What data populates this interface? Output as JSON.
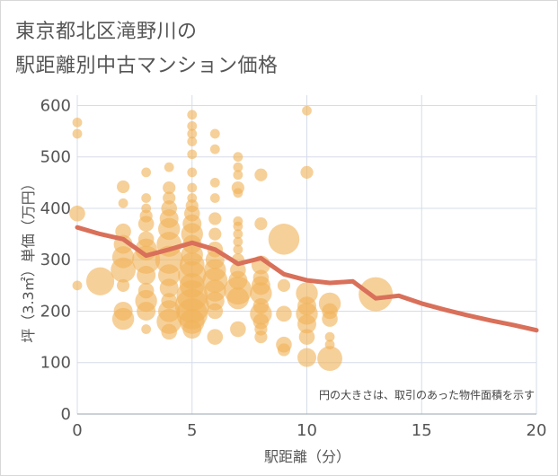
{
  "header": {
    "title_line1": "東京都北区滝野川の",
    "title_line2": "駅距離別中古マンション価格"
  },
  "chart_data": {
    "type": "scatter",
    "xlabel": "駅距離（分）",
    "ylabel": "坪（3.3㎡）単価（万円）",
    "xlim": [
      0,
      20
    ],
    "ylim": [
      0,
      620
    ],
    "xticks": [
      0,
      5,
      10,
      15,
      20
    ],
    "yticks": [
      0,
      100,
      200,
      300,
      400,
      500,
      600
    ],
    "grid": true,
    "note": "円の大きさは、取引のあった物件面積を示す",
    "colors": {
      "bubble": "#f0b35a",
      "line": "#d9705a",
      "grid": "#d6dce8",
      "text": "#555555"
    },
    "trend_line": {
      "x": [
        0,
        1,
        2,
        3,
        4,
        5,
        6,
        7,
        8,
        9,
        10,
        11,
        12,
        13,
        14,
        15,
        16,
        17,
        18,
        19,
        20
      ],
      "y": [
        363,
        350,
        340,
        308,
        320,
        333,
        320,
        292,
        303,
        272,
        260,
        255,
        258,
        225,
        230,
        215,
        203,
        192,
        182,
        173,
        163
      ]
    },
    "bubbles": [
      {
        "x": 0,
        "y": 567,
        "s": 2
      },
      {
        "x": 0,
        "y": 545,
        "s": 2
      },
      {
        "x": 0,
        "y": 390,
        "s": 4
      },
      {
        "x": 0,
        "y": 250,
        "s": 2
      },
      {
        "x": 1,
        "y": 258,
        "s": 8
      },
      {
        "x": 2,
        "y": 442,
        "s": 3
      },
      {
        "x": 2,
        "y": 410,
        "s": 2
      },
      {
        "x": 2,
        "y": 355,
        "s": 4
      },
      {
        "x": 2,
        "y": 330,
        "s": 5
      },
      {
        "x": 2,
        "y": 305,
        "s": 6
      },
      {
        "x": 2,
        "y": 280,
        "s": 7
      },
      {
        "x": 2,
        "y": 250,
        "s": 3
      },
      {
        "x": 2,
        "y": 200,
        "s": 5
      },
      {
        "x": 2,
        "y": 185,
        "s": 6
      },
      {
        "x": 3,
        "y": 470,
        "s": 2
      },
      {
        "x": 3,
        "y": 420,
        "s": 2
      },
      {
        "x": 3,
        "y": 400,
        "s": 2
      },
      {
        "x": 3,
        "y": 385,
        "s": 3
      },
      {
        "x": 3,
        "y": 370,
        "s": 4
      },
      {
        "x": 3,
        "y": 340,
        "s": 4
      },
      {
        "x": 3,
        "y": 320,
        "s": 6
      },
      {
        "x": 3,
        "y": 300,
        "s": 8
      },
      {
        "x": 3,
        "y": 270,
        "s": 5
      },
      {
        "x": 3,
        "y": 240,
        "s": 4
      },
      {
        "x": 3,
        "y": 220,
        "s": 6
      },
      {
        "x": 3,
        "y": 200,
        "s": 5
      },
      {
        "x": 3,
        "y": 165,
        "s": 2
      },
      {
        "x": 4,
        "y": 480,
        "s": 2
      },
      {
        "x": 4,
        "y": 440,
        "s": 3
      },
      {
        "x": 4,
        "y": 420,
        "s": 3
      },
      {
        "x": 4,
        "y": 400,
        "s": 4
      },
      {
        "x": 4,
        "y": 380,
        "s": 5
      },
      {
        "x": 4,
        "y": 360,
        "s": 6
      },
      {
        "x": 4,
        "y": 330,
        "s": 7
      },
      {
        "x": 4,
        "y": 300,
        "s": 8
      },
      {
        "x": 4,
        "y": 270,
        "s": 6
      },
      {
        "x": 4,
        "y": 245,
        "s": 5
      },
      {
        "x": 4,
        "y": 220,
        "s": 4
      },
      {
        "x": 4,
        "y": 200,
        "s": 6
      },
      {
        "x": 4,
        "y": 180,
        "s": 7
      },
      {
        "x": 4,
        "y": 160,
        "s": 4
      },
      {
        "x": 5,
        "y": 582,
        "s": 2
      },
      {
        "x": 5,
        "y": 560,
        "s": 2
      },
      {
        "x": 5,
        "y": 545,
        "s": 2
      },
      {
        "x": 5,
        "y": 530,
        "s": 2
      },
      {
        "x": 5,
        "y": 505,
        "s": 2
      },
      {
        "x": 5,
        "y": 470,
        "s": 2
      },
      {
        "x": 5,
        "y": 440,
        "s": 2
      },
      {
        "x": 5,
        "y": 420,
        "s": 2
      },
      {
        "x": 5,
        "y": 405,
        "s": 3
      },
      {
        "x": 5,
        "y": 390,
        "s": 4
      },
      {
        "x": 5,
        "y": 370,
        "s": 5
      },
      {
        "x": 5,
        "y": 350,
        "s": 6
      },
      {
        "x": 5,
        "y": 330,
        "s": 5
      },
      {
        "x": 5,
        "y": 310,
        "s": 6
      },
      {
        "x": 5,
        "y": 290,
        "s": 7
      },
      {
        "x": 5,
        "y": 270,
        "s": 8
      },
      {
        "x": 5,
        "y": 250,
        "s": 7
      },
      {
        "x": 5,
        "y": 230,
        "s": 9
      },
      {
        "x": 5,
        "y": 210,
        "s": 10
      },
      {
        "x": 5,
        "y": 195,
        "s": 9
      },
      {
        "x": 5,
        "y": 180,
        "s": 7
      },
      {
        "x": 5,
        "y": 165,
        "s": 5
      },
      {
        "x": 6,
        "y": 545,
        "s": 2
      },
      {
        "x": 6,
        "y": 515,
        "s": 2
      },
      {
        "x": 6,
        "y": 450,
        "s": 2
      },
      {
        "x": 6,
        "y": 420,
        "s": 2
      },
      {
        "x": 6,
        "y": 380,
        "s": 3
      },
      {
        "x": 6,
        "y": 350,
        "s": 3
      },
      {
        "x": 6,
        "y": 320,
        "s": 4
      },
      {
        "x": 6,
        "y": 300,
        "s": 5
      },
      {
        "x": 6,
        "y": 280,
        "s": 6
      },
      {
        "x": 6,
        "y": 260,
        "s": 7
      },
      {
        "x": 6,
        "y": 240,
        "s": 6
      },
      {
        "x": 6,
        "y": 220,
        "s": 5
      },
      {
        "x": 6,
        "y": 200,
        "s": 4
      },
      {
        "x": 6,
        "y": 150,
        "s": 4
      },
      {
        "x": 7,
        "y": 500,
        "s": 2
      },
      {
        "x": 7,
        "y": 480,
        "s": 2
      },
      {
        "x": 7,
        "y": 465,
        "s": 2
      },
      {
        "x": 7,
        "y": 440,
        "s": 3
      },
      {
        "x": 7,
        "y": 430,
        "s": 2
      },
      {
        "x": 7,
        "y": 375,
        "s": 2
      },
      {
        "x": 7,
        "y": 365,
        "s": 2
      },
      {
        "x": 7,
        "y": 350,
        "s": 2
      },
      {
        "x": 7,
        "y": 335,
        "s": 2
      },
      {
        "x": 7,
        "y": 320,
        "s": 2
      },
      {
        "x": 7,
        "y": 300,
        "s": 3
      },
      {
        "x": 7,
        "y": 280,
        "s": 4
      },
      {
        "x": 7,
        "y": 260,
        "s": 5
      },
      {
        "x": 7,
        "y": 240,
        "s": 8
      },
      {
        "x": 7,
        "y": 225,
        "s": 6
      },
      {
        "x": 7,
        "y": 165,
        "s": 4
      },
      {
        "x": 8,
        "y": 465,
        "s": 3
      },
      {
        "x": 8,
        "y": 370,
        "s": 3
      },
      {
        "x": 8,
        "y": 290,
        "s": 5
      },
      {
        "x": 8,
        "y": 265,
        "s": 4
      },
      {
        "x": 8,
        "y": 250,
        "s": 5
      },
      {
        "x": 8,
        "y": 235,
        "s": 6
      },
      {
        "x": 8,
        "y": 210,
        "s": 4
      },
      {
        "x": 8,
        "y": 195,
        "s": 6
      },
      {
        "x": 8,
        "y": 180,
        "s": 4
      },
      {
        "x": 8,
        "y": 165,
        "s": 3
      },
      {
        "x": 8,
        "y": 150,
        "s": 3
      },
      {
        "x": 9,
        "y": 340,
        "s": 9
      },
      {
        "x": 9,
        "y": 250,
        "s": 3
      },
      {
        "x": 9,
        "y": 195,
        "s": 4
      },
      {
        "x": 9,
        "y": 135,
        "s": 4
      },
      {
        "x": 9,
        "y": 125,
        "s": 3
      },
      {
        "x": 10,
        "y": 590,
        "s": 2
      },
      {
        "x": 10,
        "y": 470,
        "s": 3
      },
      {
        "x": 10,
        "y": 235,
        "s": 6
      },
      {
        "x": 10,
        "y": 210,
        "s": 5
      },
      {
        "x": 10,
        "y": 195,
        "s": 6
      },
      {
        "x": 10,
        "y": 175,
        "s": 5
      },
      {
        "x": 10,
        "y": 150,
        "s": 4
      },
      {
        "x": 10,
        "y": 110,
        "s": 5
      },
      {
        "x": 11,
        "y": 215,
        "s": 6
      },
      {
        "x": 11,
        "y": 200,
        "s": 4
      },
      {
        "x": 11,
        "y": 185,
        "s": 4
      },
      {
        "x": 11,
        "y": 150,
        "s": 2
      },
      {
        "x": 11,
        "y": 135,
        "s": 2
      },
      {
        "x": 11,
        "y": 108,
        "s": 7
      },
      {
        "x": 13,
        "y": 233,
        "s": 10
      }
    ]
  }
}
